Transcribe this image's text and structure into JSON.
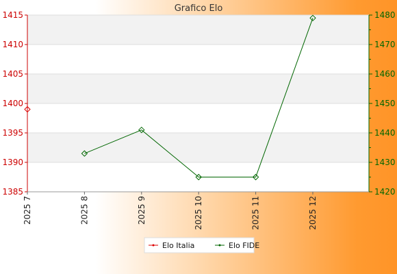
{
  "chart_data": {
    "type": "line",
    "title": "Grafico Elo",
    "categories": [
      "2025 7",
      "2025 8",
      "2025 9",
      "2025 10",
      "2025 11",
      "2025 12"
    ],
    "y_left": {
      "min": 1385,
      "max": 1415,
      "ticks": [
        1385,
        1390,
        1395,
        1400,
        1405,
        1410,
        1415
      ],
      "color": "#cc0000"
    },
    "y_right": {
      "min": 1420,
      "max": 1480,
      "ticks": [
        1420,
        1430,
        1440,
        1450,
        1460,
        1470,
        1480
      ],
      "color": "#006600"
    },
    "series": [
      {
        "name": "Elo Italia",
        "axis": "left",
        "color": "#dd0000",
        "values": [
          1399,
          null,
          null,
          null,
          null,
          null
        ]
      },
      {
        "name": "Elo FIDE",
        "axis": "right",
        "color": "#006600",
        "values": [
          null,
          1433,
          1441,
          1425,
          1425,
          1479
        ]
      }
    ],
    "grid": true,
    "legend_position": "bottom"
  },
  "colors": {
    "band": "#f2f2f2",
    "plot_bg": "#ffffff",
    "grid": "#dddddd"
  }
}
